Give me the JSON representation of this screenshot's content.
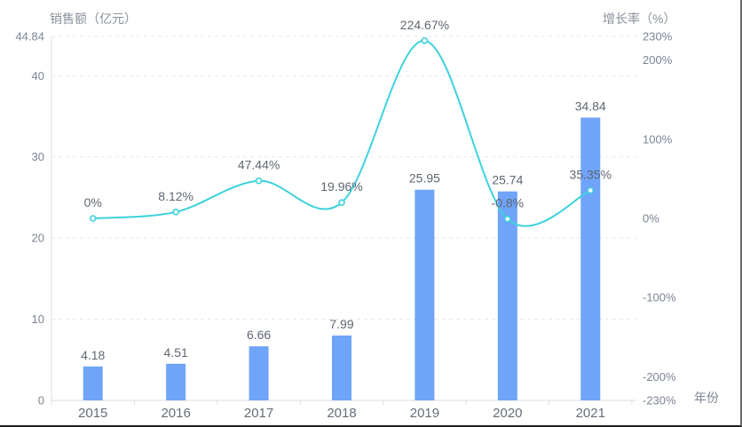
{
  "chart_data": {
    "type": "bar+line",
    "categories": [
      "2015",
      "2016",
      "2017",
      "2018",
      "2019",
      "2020",
      "2021"
    ],
    "series": [
      {
        "name": "销售额",
        "type": "bar",
        "unit": "亿元",
        "values": [
          4.18,
          4.51,
          6.66,
          7.99,
          25.95,
          25.74,
          34.84
        ],
        "labels": [
          "4.18",
          "4.51",
          "6.66",
          "7.99",
          "25.95",
          "25.74",
          "34.84"
        ],
        "color": "#6FA4F8"
      },
      {
        "name": "增长率",
        "type": "line",
        "unit": "%",
        "values": [
          0,
          8.12,
          47.44,
          19.96,
          224.67,
          -0.8,
          35.35
        ],
        "labels": [
          "0%",
          "8.12%",
          "47.44%",
          "19.96%",
          "224.67%",
          "-0.8%",
          "35.35%"
        ],
        "color": "#3ED2DC",
        "smooth": true,
        "point_style": "white-filled circle with cyan stroke"
      }
    ],
    "left_axis": {
      "title": "销售额（亿元）",
      "max": 44.84,
      "ticks": [
        0,
        10,
        20,
        30,
        40,
        44.84
      ],
      "tick_labels": [
        "0",
        "10",
        "20",
        "30",
        "40",
        "44.84"
      ]
    },
    "right_axis": {
      "title": "增长率（%）",
      "max": 230,
      "ticks": [
        -230,
        -200,
        -100,
        0,
        100,
        200,
        230
      ],
      "tick_labels": [
        "-230%",
        "-200%",
        "-100%",
        "0%",
        "100%",
        "200%",
        "230%"
      ]
    },
    "x_axis": {
      "title": "年份"
    },
    "grid": "horizontal dashed lines at left-axis ticks",
    "legend_position": "none",
    "colors": {
      "bar": "#6FA4F8",
      "line": "#3ED2DC",
      "gridline": "#E3E8F3",
      "axis_line": "#D8DCE4",
      "tick_label": "#7C8494",
      "data_label": "#5F6672",
      "year_label": "#666E79",
      "background": "#ffffff"
    }
  }
}
